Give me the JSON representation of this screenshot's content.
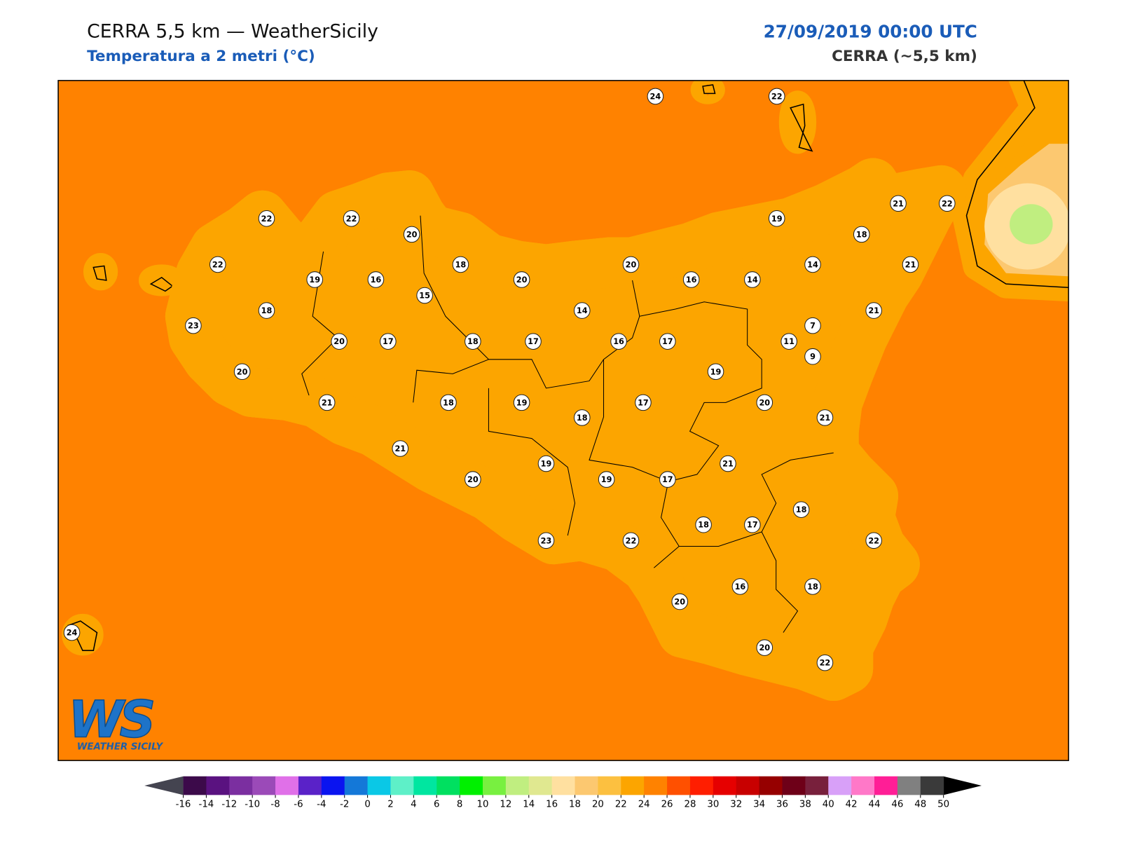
{
  "header": {
    "title": "CERRA 5,5 km — WeatherSicily",
    "subtitle": "Temperatura a 2 metri (°C)",
    "date": "27/09/2019 00:00 UTC",
    "model": "CERRA (~5,5 km)"
  },
  "map": {
    "stations": [
      24,
      22,
      22,
      22,
      20,
      19,
      21,
      22,
      18,
      22,
      19,
      16,
      18,
      20,
      20,
      16,
      14,
      14,
      21,
      15,
      18,
      14,
      21,
      7,
      23,
      20,
      17,
      18,
      17,
      16,
      17,
      11,
      9,
      20,
      19,
      21,
      18,
      19,
      17,
      20,
      18,
      21,
      21,
      19,
      21,
      20,
      19,
      17,
      18,
      18,
      17,
      23,
      22,
      22,
      16,
      18,
      20,
      24,
      20,
      22
    ]
  },
  "colorbar": {
    "ticks": [
      -16,
      -14,
      -12,
      -10,
      -8,
      -6,
      -4,
      -2,
      0,
      2,
      4,
      6,
      8,
      10,
      12,
      14,
      16,
      18,
      20,
      22,
      24,
      26,
      28,
      30,
      32,
      34,
      36,
      38,
      40,
      42,
      44,
      46,
      48,
      50
    ],
    "colors": [
      "#3c0a4a",
      "#5a1280",
      "#7b2fa0",
      "#9b4ab8",
      "#e070e8",
      "#5a22c8",
      "#0a14f0",
      "#1478d8",
      "#0ac8e6",
      "#5ef0c8",
      "#00e6a0",
      "#00e060",
      "#00f000",
      "#78f040",
      "#c0ee80",
      "#e0e890",
      "#ffe0a0",
      "#fcc870",
      "#fcc040",
      "#fca500",
      "#ff8200",
      "#ff5000",
      "#ff1e00",
      "#e60000",
      "#c80000",
      "#960000",
      "#6e0018",
      "#78203c",
      "#d8a0f8",
      "#ff78c8",
      "#ff1e96",
      "#808080",
      "#3a3a3a"
    ],
    "extend_colors": [
      "#444450",
      "#000000"
    ]
  },
  "logo": {
    "mark": "WS",
    "text": "WEATHER SICILY"
  }
}
